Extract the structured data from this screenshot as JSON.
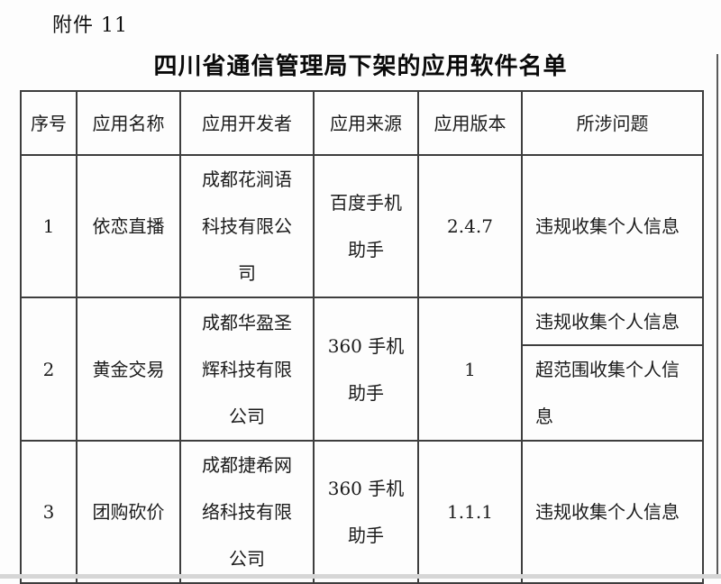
{
  "page": {
    "attachment_label": "附件 11",
    "title": "四川省通信管理局下架的应用软件名单"
  },
  "table": {
    "headers": {
      "serial": "序号",
      "app_name": "应用名称",
      "developer": "应用开发者",
      "source": "应用来源",
      "version": "应用版本",
      "issues": "所涉问题"
    },
    "rows": [
      {
        "serial": "1",
        "app_name": "依恋直播",
        "developer": "成都花涧语科技有限公司",
        "source": "百度手机助手",
        "version": "2.4.7",
        "issues": [
          "违规收集个人信息"
        ]
      },
      {
        "serial": "2",
        "app_name": "黄金交易",
        "developer": "成都华盈圣辉科技有限公司",
        "source": "360 手机助手",
        "version": "1",
        "issues": [
          "违规收集个人信息",
          "超范围收集个人信息"
        ]
      },
      {
        "serial": "3",
        "app_name": "团购砍价",
        "developer": "成都捷希网络科技有限公司",
        "source": "360 手机助手",
        "version": "1.1.1",
        "issues": [
          "违规收集个人信息"
        ]
      }
    ]
  }
}
